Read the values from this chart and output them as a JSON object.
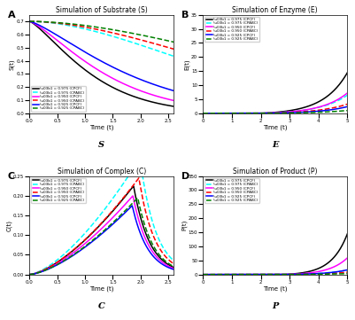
{
  "title_A": "Simulation of Substrate (S)",
  "title_B": "Simulation of Enzyme (E)",
  "title_C": "Simulation of Complex (C)",
  "title_D": "Simulation of Product (P)",
  "xlabel": "Time (t)",
  "ylabel_A": "S(t)",
  "ylabel_B": "E(t)",
  "ylabel_C": "C(t)",
  "ylabel_D": "P(t)",
  "label_A": "S",
  "label_B": "E",
  "label_C": "C",
  "label_D": "P",
  "legend_entries": [
    "\\u03b1 = 0.975 (CPCF)",
    "\\u03b1 = 0.975 (CPABC)",
    "\\u03b1 = 0.950 (CPCF)",
    "\\u03b1 = 0.950 (CPABC)",
    "\\u03b1 = 0.925 (CPCF)",
    "\\u03b1 = 0.925 (CPABC)"
  ],
  "alphas": [
    0.975,
    0.975,
    0.95,
    0.95,
    0.925,
    0.925
  ],
  "methods": [
    "CPCF",
    "CPABC",
    "CPCF",
    "CPABC",
    "CPCF",
    "CPABC"
  ],
  "colors": [
    "#000000",
    "#00FFFF",
    "#FF00FF",
    "#FF0000",
    "#0000FF",
    "#008000"
  ],
  "linestyles": [
    "-",
    "--",
    "-",
    "--",
    "-",
    "--"
  ],
  "S_init": 0.7,
  "xlim_A": [
    0,
    2.6
  ],
  "xlim_B": [
    0,
    5.0
  ],
  "xlim_C": [
    0,
    2.6
  ],
  "xlim_D": [
    0,
    5.0
  ],
  "ylim_A": [
    0,
    0.75
  ],
  "ylim_B": [
    0,
    35
  ],
  "ylim_C": [
    0,
    0.25
  ],
  "ylim_D": [
    0,
    350
  ]
}
